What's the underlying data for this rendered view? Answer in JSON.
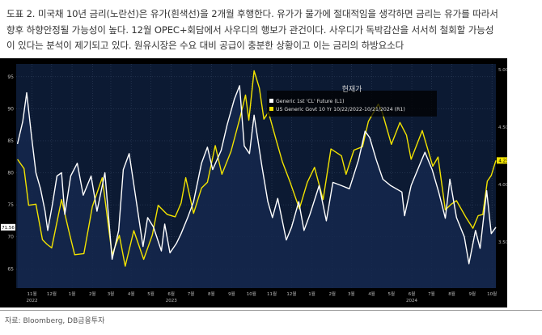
{
  "caption": {
    "line1": "도표 2. 미국채 10년 금리(노란선)은 유가(흰색선)을 2개월 후행한다. 유가가 물가에 절대적임을 생각하면 금리는 유가를 따라서",
    "line2": "향후 하향안정될 가능성이 높다. 12월 OPEC+회담에서 사우디의 행보가 관건이다. 사우디가 독박감산을 서서히 철회할 가능성",
    "line3": "이 있다는 분석이 제기되고 있다. 원유시장은 수요 대비 공급이 충분한 상황이고 이는 금리의 하방요소다"
  },
  "source": "자료: Bloomberg, DB금융투자",
  "colors": {
    "background": "#000000",
    "plot_area": "#0c1a33",
    "oil_line": "#ffffff",
    "yield_line": "#f2e300"
  },
  "chart_data": {
    "type": "line",
    "legend": {
      "title": "현재가",
      "placement": "top-center",
      "entries": [
        "Generic 1st 'CL' Future  (L1)",
        "US Generic Govt 10 Yr 10/22/2022-10/21/2024  (R1)"
      ]
    },
    "x_range": [
      "2022-10-22",
      "2024-10-21"
    ],
    "month_ticks": [
      "11월",
      "12월",
      "1월",
      "2월",
      "3월",
      "4월",
      "5월",
      "6월",
      "7월",
      "8월",
      "9월",
      "10월",
      "11월",
      "12월",
      "1월",
      "2월",
      "3월",
      "4월",
      "5월",
      "6월",
      "7월",
      "8월",
      "9월",
      "10월"
    ],
    "year_labels": [
      {
        "text": "2022",
        "month_index": 0
      },
      {
        "text": "2023",
        "month_index": 7
      },
      {
        "text": "2024",
        "month_index": 19
      }
    ],
    "left_axis": {
      "ylim": [
        62,
        97
      ],
      "ticks": [
        "95",
        "90",
        "85",
        "80",
        "75",
        "70",
        "65"
      ],
      "current_label": "71.56"
    },
    "right_axis": {
      "ylim": [
        3.1,
        5.05
      ],
      "ticks": [
        "5.0000",
        "4.5000",
        "4.0000",
        "3.5000"
      ],
      "current_label": "4.2300"
    },
    "series": [
      {
        "name": "Generic 1st 'CL' Future  (L1)",
        "axis": "left",
        "points": [
          [
            "2022-10-24",
            84.5
          ],
          [
            "2022-11-01",
            88.0
          ],
          [
            "2022-11-07",
            92.5
          ],
          [
            "2022-11-14",
            86.0
          ],
          [
            "2022-11-21",
            80.0
          ],
          [
            "2022-11-28",
            77.5
          ],
          [
            "2022-12-05",
            74.0
          ],
          [
            "2022-12-09",
            71.0
          ],
          [
            "2022-12-16",
            75.0
          ],
          [
            "2022-12-23",
            79.5
          ],
          [
            "2022-12-30",
            80.0
          ],
          [
            "2023-01-04",
            73.5
          ],
          [
            "2023-01-13",
            79.5
          ],
          [
            "2023-01-23",
            81.5
          ],
          [
            "2023-02-01",
            76.5
          ],
          [
            "2023-02-13",
            79.5
          ],
          [
            "2023-02-22",
            74.0
          ],
          [
            "2023-03-06",
            80.0
          ],
          [
            "2023-03-17",
            66.5
          ],
          [
            "2023-03-27",
            71.0
          ],
          [
            "2023-04-03",
            80.5
          ],
          [
            "2023-04-12",
            83.0
          ],
          [
            "2023-04-20",
            77.5
          ],
          [
            "2023-05-03",
            68.5
          ],
          [
            "2023-05-10",
            73.0
          ],
          [
            "2023-05-19",
            71.5
          ],
          [
            "2023-05-31",
            67.8
          ],
          [
            "2023-06-05",
            72.0
          ],
          [
            "2023-06-13",
            67.5
          ],
          [
            "2023-06-23",
            69.0
          ],
          [
            "2023-06-30",
            70.5
          ],
          [
            "2023-07-10",
            73.0
          ],
          [
            "2023-07-19",
            75.5
          ],
          [
            "2023-07-31",
            81.5
          ],
          [
            "2023-08-09",
            84.0
          ],
          [
            "2023-08-17",
            80.5
          ],
          [
            "2023-08-30",
            83.5
          ],
          [
            "2023-09-08",
            87.5
          ],
          [
            "2023-09-19",
            91.5
          ],
          [
            "2023-09-27",
            93.6
          ],
          [
            "2023-10-04",
            84.2
          ],
          [
            "2023-10-12",
            83.0
          ],
          [
            "2023-10-19",
            89.0
          ],
          [
            "2023-10-31",
            81.0
          ],
          [
            "2023-11-09",
            75.5
          ],
          [
            "2023-11-16",
            73.0
          ],
          [
            "2023-11-24",
            76.0
          ],
          [
            "2023-12-07",
            69.5
          ],
          [
            "2023-12-15",
            71.5
          ],
          [
            "2023-12-26",
            75.5
          ],
          [
            "2024-01-03",
            71.0
          ],
          [
            "2024-01-12",
            73.5
          ],
          [
            "2024-01-26",
            78.0
          ],
          [
            "2024-02-06",
            72.5
          ],
          [
            "2024-02-16",
            78.5
          ],
          [
            "2024-02-29",
            78.0
          ],
          [
            "2024-03-12",
            77.5
          ],
          [
            "2024-03-26",
            82.0
          ],
          [
            "2024-04-05",
            86.5
          ],
          [
            "2024-04-12",
            85.5
          ],
          [
            "2024-04-22",
            82.0
          ],
          [
            "2024-05-02",
            79.0
          ],
          [
            "2024-05-14",
            78.0
          ],
          [
            "2024-05-31",
            77.0
          ],
          [
            "2024-06-04",
            73.3
          ],
          [
            "2024-06-14",
            78.0
          ],
          [
            "2024-06-28",
            81.5
          ],
          [
            "2024-07-05",
            83.2
          ],
          [
            "2024-07-16",
            80.5
          ],
          [
            "2024-07-26",
            77.0
          ],
          [
            "2024-08-05",
            72.9
          ],
          [
            "2024-08-12",
            79.0
          ],
          [
            "2024-08-22",
            73.0
          ],
          [
            "2024-09-03",
            70.0
          ],
          [
            "2024-09-10",
            65.8
          ],
          [
            "2024-09-20",
            71.0
          ],
          [
            "2024-09-27",
            68.2
          ],
          [
            "2024-10-07",
            77.2
          ],
          [
            "2024-10-14",
            70.5
          ],
          [
            "2024-10-21",
            71.5
          ]
        ]
      },
      {
        "name": "US Generic Govt 10 Yr 10/22/2022-10/21/2024  (R1)",
        "axis": "right",
        "points": [
          [
            "2022-10-24",
            4.22
          ],
          [
            "2022-11-03",
            4.14
          ],
          [
            "2022-11-10",
            3.82
          ],
          [
            "2022-11-21",
            3.83
          ],
          [
            "2022-12-01",
            3.52
          ],
          [
            "2022-12-08",
            3.48
          ],
          [
            "2022-12-15",
            3.45
          ],
          [
            "2022-12-30",
            3.87
          ],
          [
            "2023-01-10",
            3.6
          ],
          [
            "2023-01-19",
            3.39
          ],
          [
            "2023-02-02",
            3.4
          ],
          [
            "2023-02-15",
            3.81
          ],
          [
            "2023-03-02",
            4.06
          ],
          [
            "2023-03-10",
            3.7
          ],
          [
            "2023-03-17",
            3.39
          ],
          [
            "2023-03-28",
            3.56
          ],
          [
            "2023-04-06",
            3.29
          ],
          [
            "2023-04-19",
            3.6
          ],
          [
            "2023-05-04",
            3.35
          ],
          [
            "2023-05-17",
            3.56
          ],
          [
            "2023-05-26",
            3.82
          ],
          [
            "2023-06-09",
            3.74
          ],
          [
            "2023-06-21",
            3.72
          ],
          [
            "2023-06-30",
            3.84
          ],
          [
            "2023-07-07",
            4.06
          ],
          [
            "2023-07-19",
            3.75
          ],
          [
            "2023-07-31",
            3.97
          ],
          [
            "2023-08-09",
            4.02
          ],
          [
            "2023-08-21",
            4.34
          ],
          [
            "2023-08-31",
            4.09
          ],
          [
            "2023-09-14",
            4.29
          ],
          [
            "2023-09-28",
            4.59
          ],
          [
            "2023-10-06",
            4.78
          ],
          [
            "2023-10-11",
            4.56
          ],
          [
            "2023-10-19",
            4.99
          ],
          [
            "2023-10-27",
            4.84
          ],
          [
            "2023-11-03",
            4.57
          ],
          [
            "2023-11-10",
            4.63
          ],
          [
            "2023-11-21",
            4.4
          ],
          [
            "2023-12-01",
            4.2
          ],
          [
            "2023-12-13",
            4.02
          ],
          [
            "2023-12-27",
            3.79
          ],
          [
            "2024-01-08",
            4.02
          ],
          [
            "2024-01-19",
            4.15
          ],
          [
            "2024-02-01",
            3.87
          ],
          [
            "2024-02-13",
            4.31
          ],
          [
            "2024-02-29",
            4.25
          ],
          [
            "2024-03-07",
            4.09
          ],
          [
            "2024-03-19",
            4.3
          ],
          [
            "2024-04-01",
            4.33
          ],
          [
            "2024-04-10",
            4.55
          ],
          [
            "2024-04-25",
            4.7
          ],
          [
            "2024-05-01",
            4.63
          ],
          [
            "2024-05-15",
            4.35
          ],
          [
            "2024-05-28",
            4.54
          ],
          [
            "2024-06-07",
            4.43
          ],
          [
            "2024-06-14",
            4.22
          ],
          [
            "2024-07-01",
            4.47
          ],
          [
            "2024-07-17",
            4.16
          ],
          [
            "2024-07-25",
            4.24
          ],
          [
            "2024-08-05",
            3.78
          ],
          [
            "2024-08-14",
            3.83
          ],
          [
            "2024-08-22",
            3.86
          ],
          [
            "2024-09-06",
            3.71
          ],
          [
            "2024-09-16",
            3.62
          ],
          [
            "2024-09-24",
            3.73
          ],
          [
            "2024-10-01",
            3.74
          ],
          [
            "2024-10-08",
            4.03
          ],
          [
            "2024-10-14",
            4.08
          ],
          [
            "2024-10-21",
            4.21
          ]
        ]
      }
    ]
  }
}
